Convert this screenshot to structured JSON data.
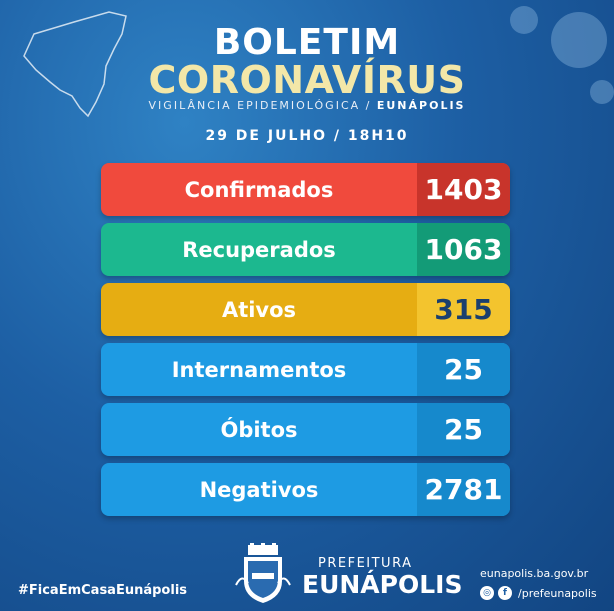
{
  "header": {
    "title_line1": "BOLETIM",
    "title_line2": "CORONAVÍRUS",
    "subtitle_prefix": "VIGILÂNCIA EPIDEMIOLÓGICA / ",
    "subtitle_city": "EUNÁPOLIS",
    "date": "29 DE JULHO / 18H10"
  },
  "stats": [
    {
      "label": "Confirmados",
      "value": "1403",
      "bg": "#f04a3d",
      "value_bg": "#c8342b",
      "value_color": "#ffffff"
    },
    {
      "label": "Recuperados",
      "value": "1063",
      "bg": "#1cb88f",
      "value_bg": "#139b77",
      "value_color": "#ffffff"
    },
    {
      "label": "Ativos",
      "value": "315",
      "bg": "#e6ad12",
      "value_bg": "#f3c42e",
      "value_color": "#1b3f6e"
    },
    {
      "label": "Internamentos",
      "value": "25",
      "bg": "#1e9be3",
      "value_bg": "#1689cc",
      "value_color": "#ffffff"
    },
    {
      "label": "Óbitos",
      "value": "25",
      "bg": "#1e9be3",
      "value_bg": "#1689cc",
      "value_color": "#ffffff"
    },
    {
      "label": "Negativos",
      "value": "2781",
      "bg": "#1e9be3",
      "value_bg": "#1689cc",
      "value_color": "#ffffff"
    }
  ],
  "footer": {
    "hashtag": "#FicaEmCasaEunápolis",
    "prefeitura_small": "PREFEITURA",
    "prefeitura_big": "EUNÁPOLIS",
    "website": "eunapolis.ba.gov.br",
    "social_handle": "/prefeunapolis",
    "icons": [
      "instagram-icon",
      "facebook-icon"
    ]
  }
}
